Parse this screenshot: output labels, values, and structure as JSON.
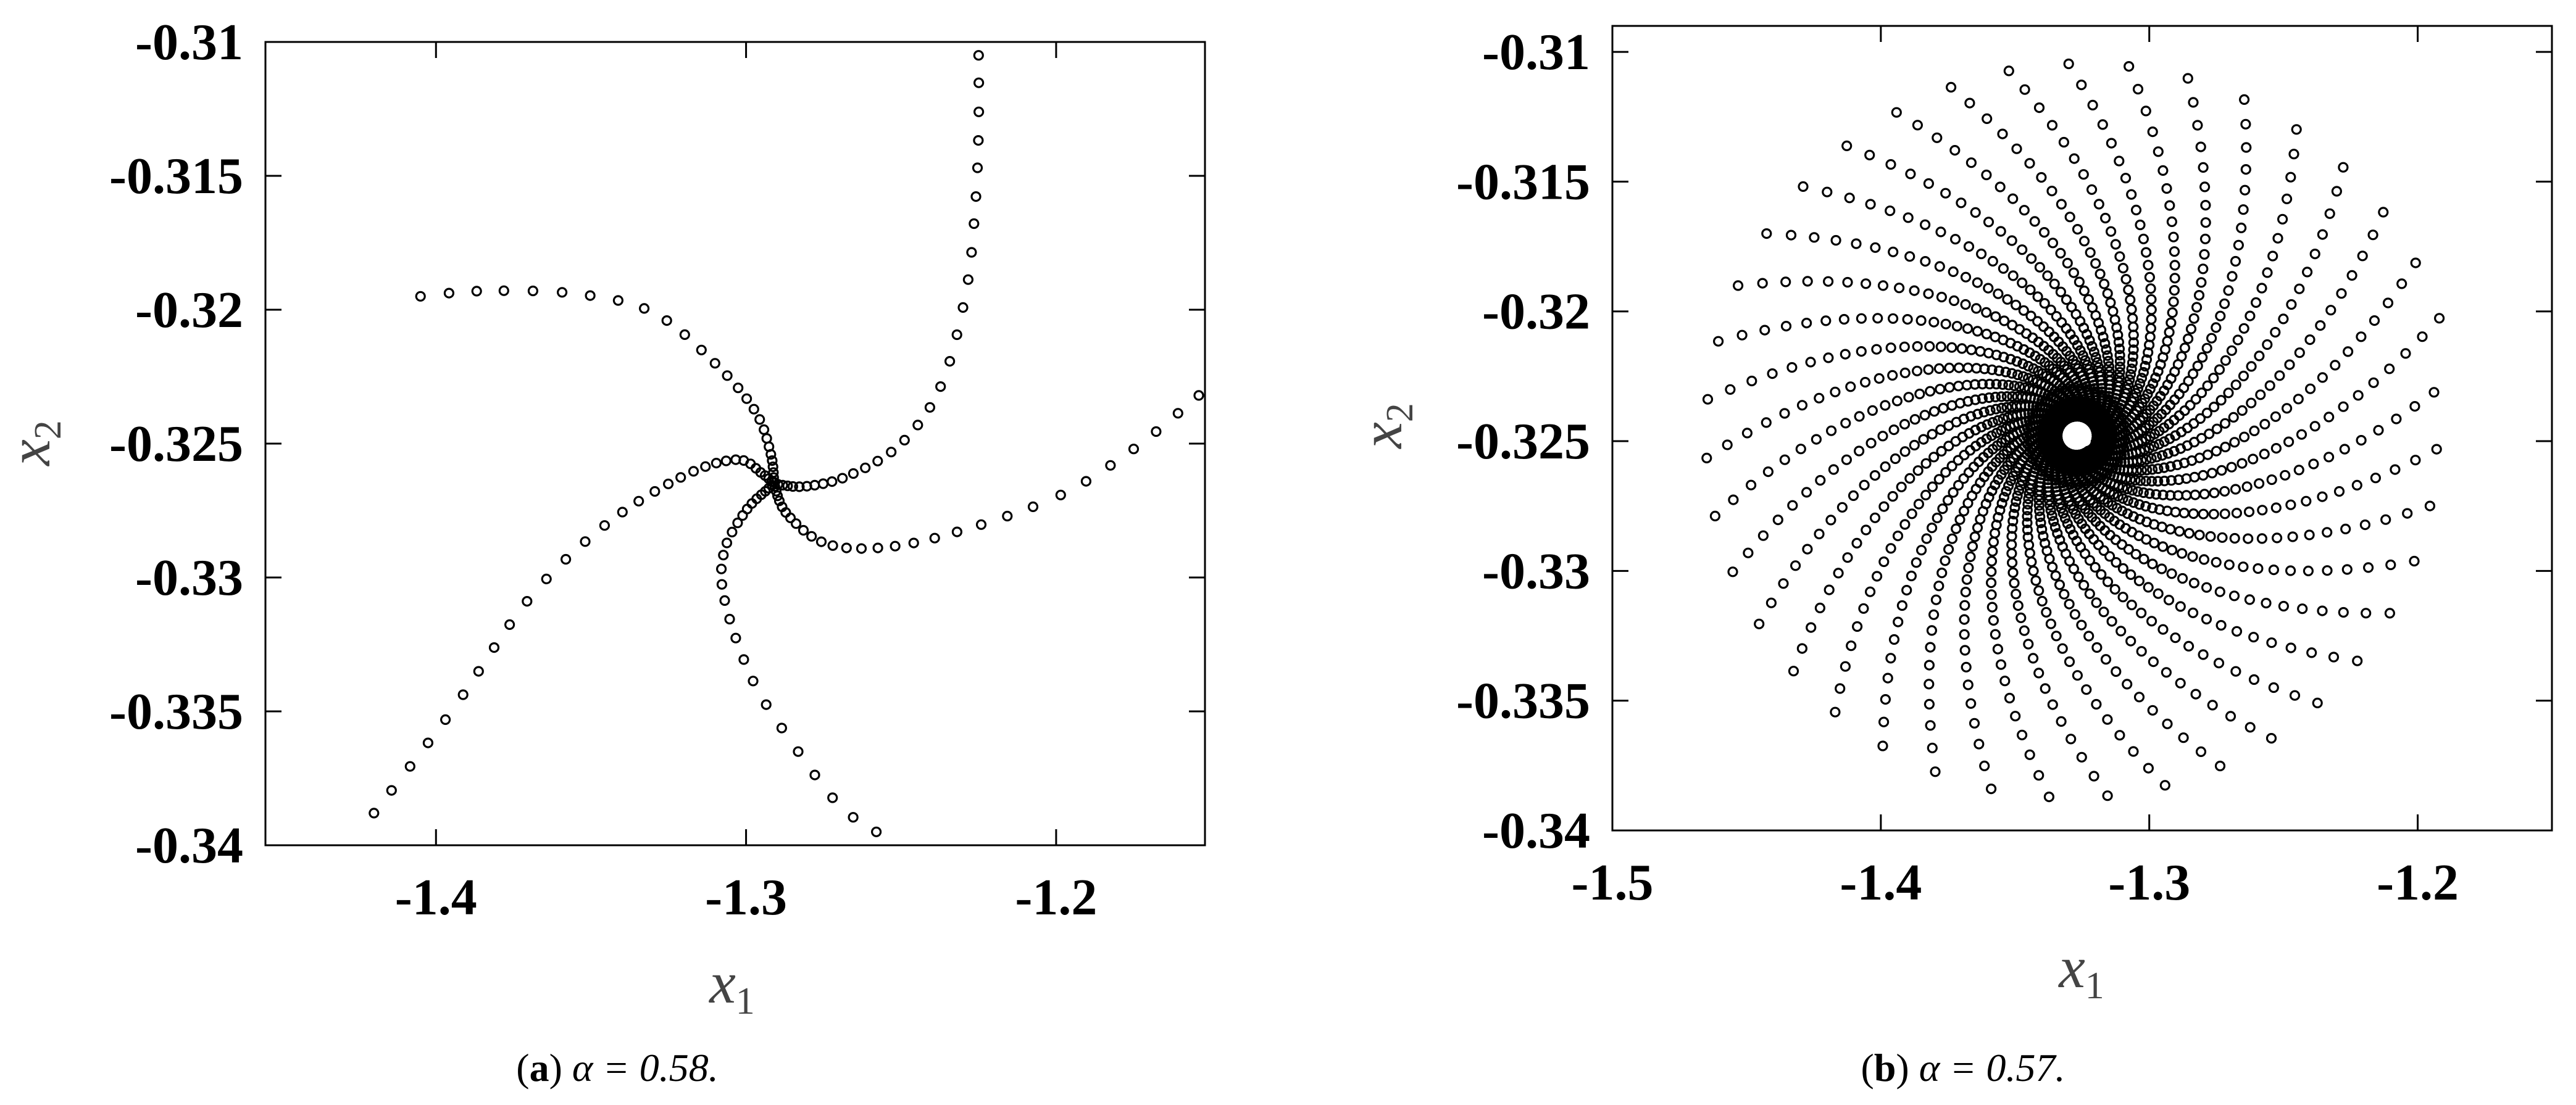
{
  "chart_data": [
    {
      "id": "a",
      "type": "scatter",
      "caption": {
        "label": "a",
        "text": "α = 0.58."
      },
      "xlabel": {
        "main": "x",
        "sub": "1"
      },
      "ylabel": {
        "main": "x",
        "sub": "2"
      },
      "xlim": [
        -1.455,
        -1.152
      ],
      "ylim": [
        -0.34,
        -0.31
      ],
      "xticks": [
        -1.4,
        -1.3,
        -1.2
      ],
      "xtick_labels": [
        "-1.4",
        "-1.3",
        "-1.2"
      ],
      "yticks": [
        -0.31,
        -0.315,
        -0.32,
        -0.325,
        -0.33,
        -0.335,
        -0.34
      ],
      "ytick_labels": [
        "-0.31",
        "-0.315",
        "-0.32",
        "-0.325",
        "-0.33",
        "-0.335",
        "-0.34"
      ],
      "grid": false,
      "marker": "open-circle",
      "equilibrium": [
        -1.291,
        -0.3265
      ],
      "spiral_arms": [
        [
          [
            -1.225,
            -0.3105
          ],
          [
            -1.225,
            -0.3132
          ],
          [
            -1.226,
            -0.316
          ],
          [
            -1.229,
            -0.3193
          ],
          [
            -1.237,
            -0.3228
          ],
          [
            -1.25,
            -0.325
          ],
          [
            -1.267,
            -0.3262
          ],
          [
            -1.281,
            -0.3266
          ],
          [
            -1.291,
            -0.3265
          ]
        ],
        [
          [
            -1.154,
            -0.3232
          ],
          [
            -1.175,
            -0.3252
          ],
          [
            -1.2,
            -0.327
          ],
          [
            -1.235,
            -0.3284
          ],
          [
            -1.258,
            -0.3289
          ],
          [
            -1.275,
            -0.3287
          ],
          [
            -1.287,
            -0.3276
          ],
          [
            -1.291,
            -0.3265
          ]
        ],
        [
          [
            -1.258,
            -0.3395
          ],
          [
            -1.27,
            -0.3385
          ],
          [
            -1.285,
            -0.3362
          ],
          [
            -1.298,
            -0.3338
          ],
          [
            -1.307,
            -0.3308
          ],
          [
            -1.307,
            -0.329
          ],
          [
            -1.3,
            -0.3275
          ],
          [
            -1.293,
            -0.3267
          ],
          [
            -1.291,
            -0.3265
          ]
        ],
        [
          [
            -1.42,
            -0.3388
          ],
          [
            -1.395,
            -0.335
          ],
          [
            -1.37,
            -0.3308
          ],
          [
            -1.345,
            -0.328
          ],
          [
            -1.32,
            -0.3262
          ],
          [
            -1.303,
            -0.3256
          ],
          [
            -1.295,
            -0.3261
          ],
          [
            -1.291,
            -0.3265
          ]
        ],
        [
          [
            -1.405,
            -0.3195
          ],
          [
            -1.385,
            -0.3193
          ],
          [
            -1.355,
            -0.3194
          ],
          [
            -1.33,
            -0.3201
          ],
          [
            -1.31,
            -0.322
          ],
          [
            -1.297,
            -0.3238
          ],
          [
            -1.292,
            -0.3254
          ],
          [
            -1.291,
            -0.3265
          ]
        ]
      ]
    },
    {
      "id": "b",
      "type": "scatter",
      "caption": {
        "label": "b",
        "text": "α = 0.57."
      },
      "xlabel": {
        "main": "x",
        "sub": "1"
      },
      "ylabel": {
        "main": "x",
        "sub": "2"
      },
      "xlim": [
        -1.5,
        -1.15
      ],
      "ylim": [
        -0.34,
        -0.309
      ],
      "xticks": [
        -1.5,
        -1.4,
        -1.3,
        -1.2
      ],
      "xtick_labels": [
        "-1.5",
        "-1.4",
        "-1.3",
        "-1.2"
      ],
      "yticks": [
        -0.31,
        -0.315,
        -0.32,
        -0.325,
        -0.33,
        -0.335,
        -0.34
      ],
      "ytick_labels": [
        "-0.31",
        "-0.315",
        "-0.32",
        "-0.325",
        "-0.33",
        "-0.335",
        "-0.34"
      ],
      "grid": false,
      "marker": "open-circle",
      "equilibrium": [
        -1.327,
        -0.3248
      ],
      "outer_orbit": {
        "semi_axis_x1": 0.142,
        "semi_axis_x2": 0.0145,
        "tilt_deg": 18
      }
    }
  ]
}
